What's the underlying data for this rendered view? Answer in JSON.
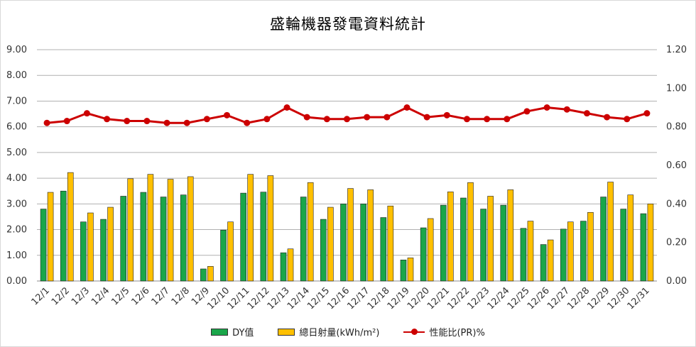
{
  "chart_data": {
    "type": "bar",
    "title": "盛輪機器發電資料統計",
    "categories": [
      "12/1",
      "12/2",
      "12/3",
      "12/4",
      "12/5",
      "12/6",
      "12/7",
      "12/8",
      "12/9",
      "12/10",
      "12/11",
      "12/12",
      "12/13",
      "12/14",
      "12/15",
      "12/16",
      "12/17",
      "12/18",
      "12/19",
      "12/20",
      "12/21",
      "12/22",
      "12/23",
      "12/24",
      "12/25",
      "12/26",
      "12/27",
      "12/28",
      "12/29",
      "12/30",
      "12/31"
    ],
    "series": [
      {
        "name": "DY值",
        "axis": "left",
        "type": "bar",
        "color": "#1aa64a",
        "values": [
          2.8,
          3.5,
          2.3,
          2.4,
          3.3,
          3.45,
          3.27,
          3.35,
          0.47,
          1.98,
          3.42,
          3.46,
          1.1,
          3.27,
          2.4,
          3.0,
          3.0,
          2.47,
          0.82,
          2.07,
          2.95,
          3.23,
          2.8,
          2.95,
          2.05,
          1.42,
          2.02,
          2.33,
          3.27,
          2.8,
          2.62
        ]
      },
      {
        "name": "總日射量(kWh/m²)",
        "axis": "left",
        "type": "bar",
        "color": "#ffc000",
        "values": [
          3.45,
          4.22,
          2.65,
          2.87,
          3.98,
          4.15,
          3.96,
          4.06,
          0.57,
          2.3,
          4.15,
          4.1,
          1.25,
          3.83,
          2.87,
          3.6,
          3.55,
          2.92,
          0.9,
          2.43,
          3.47,
          3.83,
          3.3,
          3.55,
          2.33,
          1.6,
          2.3,
          2.67,
          3.85,
          3.35,
          3.0
        ]
      },
      {
        "name": "性能比(PR)%",
        "axis": "right",
        "type": "line",
        "color": "#cc0000",
        "values": [
          0.82,
          0.83,
          0.87,
          0.84,
          0.83,
          0.83,
          0.82,
          0.82,
          0.84,
          0.86,
          0.82,
          0.84,
          0.9,
          0.85,
          0.84,
          0.84,
          0.85,
          0.85,
          0.9,
          0.85,
          0.86,
          0.84,
          0.84,
          0.84,
          0.88,
          0.9,
          0.89,
          0.87,
          0.85,
          0.84,
          0.87
        ]
      }
    ],
    "left_axis": {
      "min": 0,
      "max": 9,
      "step": 1,
      "tick_labels": [
        "0.00",
        "1.00",
        "2.00",
        "3.00",
        "4.00",
        "5.00",
        "6.00",
        "7.00",
        "8.00",
        "9.00"
      ]
    },
    "right_axis": {
      "min": 0,
      "max": 1.2,
      "step": 0.2,
      "tick_labels": [
        "0.00",
        "0.20",
        "0.40",
        "0.60",
        "0.80",
        "1.00",
        "1.20"
      ]
    },
    "grid": true,
    "legend_position": "bottom"
  }
}
